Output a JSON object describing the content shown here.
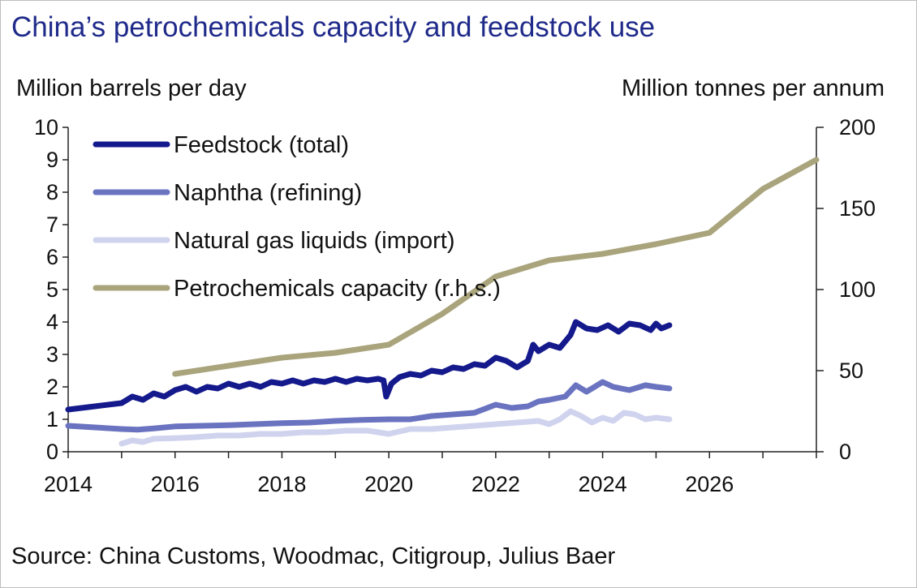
{
  "title": "China’s petrochemicals capacity and feedstock use",
  "source": "Source: China Customs, Woodmac, Citigroup, Julius Baer",
  "chart_data": {
    "type": "line",
    "title": "China’s petrochemicals capacity and feedstock use",
    "ylabel": "Million barrels per day",
    "y2label": "Million tonnes per annum",
    "xlim": [
      2014,
      2028
    ],
    "ylim": [
      0,
      10
    ],
    "y2lim": [
      0,
      200
    ],
    "x_ticks": [
      2014,
      2016,
      2018,
      2020,
      2022,
      2024,
      2026
    ],
    "y_ticks": [
      0,
      1,
      2,
      3,
      4,
      5,
      6,
      7,
      8,
      9,
      10
    ],
    "y2_ticks": [
      0,
      50,
      100,
      150,
      200
    ],
    "legend_position": "top-left",
    "grid": false,
    "series": [
      {
        "name": "Feedstock (total)",
        "axis": "left",
        "color": "#14198c",
        "width": 7,
        "x": [
          2014.0,
          2014.5,
          2015.0,
          2015.2,
          2015.4,
          2015.6,
          2015.8,
          2016.0,
          2016.2,
          2016.4,
          2016.6,
          2016.8,
          2017.0,
          2017.2,
          2017.4,
          2017.6,
          2017.8,
          2018.0,
          2018.2,
          2018.4,
          2018.6,
          2018.8,
          2019.0,
          2019.2,
          2019.4,
          2019.6,
          2019.8,
          2019.9,
          2019.95,
          2020.05,
          2020.2,
          2020.4,
          2020.6,
          2020.8,
          2021.0,
          2021.2,
          2021.4,
          2021.6,
          2021.8,
          2022.0,
          2022.2,
          2022.4,
          2022.6,
          2022.7,
          2022.8,
          2023.0,
          2023.2,
          2023.4,
          2023.5,
          2023.7,
          2023.9,
          2024.1,
          2024.3,
          2024.5,
          2024.7,
          2024.9,
          2025.0,
          2025.1,
          2025.25
        ],
        "values": [
          1.3,
          1.4,
          1.5,
          1.7,
          1.6,
          1.8,
          1.7,
          1.9,
          2.0,
          1.85,
          2.0,
          1.95,
          2.1,
          2.0,
          2.1,
          2.0,
          2.15,
          2.1,
          2.2,
          2.1,
          2.2,
          2.15,
          2.25,
          2.15,
          2.25,
          2.2,
          2.25,
          2.2,
          1.7,
          2.1,
          2.3,
          2.4,
          2.35,
          2.5,
          2.45,
          2.6,
          2.55,
          2.7,
          2.65,
          2.9,
          2.8,
          2.6,
          2.8,
          3.3,
          3.1,
          3.3,
          3.2,
          3.6,
          4.0,
          3.8,
          3.75,
          3.9,
          3.7,
          3.95,
          3.9,
          3.75,
          3.95,
          3.8,
          3.9
        ]
      },
      {
        "name": "Naphtha (refining)",
        "axis": "left",
        "color": "#6a73c0",
        "width": 7,
        "x": [
          2014.0,
          2014.5,
          2015.0,
          2015.3,
          2015.6,
          2016.0,
          2016.5,
          2017.0,
          2017.5,
          2018.0,
          2018.5,
          2019.0,
          2019.5,
          2020.0,
          2020.4,
          2020.8,
          2021.2,
          2021.6,
          2022.0,
          2022.3,
          2022.6,
          2022.8,
          2023.0,
          2023.3,
          2023.5,
          2023.7,
          2024.0,
          2024.2,
          2024.5,
          2024.8,
          2025.0,
          2025.25
        ],
        "values": [
          0.8,
          0.75,
          0.7,
          0.68,
          0.72,
          0.78,
          0.8,
          0.82,
          0.85,
          0.88,
          0.9,
          0.95,
          0.98,
          1.0,
          1.0,
          1.1,
          1.15,
          1.2,
          1.45,
          1.35,
          1.4,
          1.55,
          1.6,
          1.7,
          2.05,
          1.85,
          2.15,
          2.0,
          1.9,
          2.05,
          2.0,
          1.95
        ]
      },
      {
        "name": "Natural gas liquids (import)",
        "axis": "left",
        "color": "#d0d3ee",
        "width": 7,
        "x": [
          2015.0,
          2015.2,
          2015.4,
          2015.6,
          2016.0,
          2016.4,
          2016.8,
          2017.2,
          2017.6,
          2018.0,
          2018.4,
          2018.8,
          2019.2,
          2019.6,
          2020.0,
          2020.4,
          2020.8,
          2021.2,
          2021.6,
          2022.0,
          2022.4,
          2022.8,
          2023.0,
          2023.2,
          2023.4,
          2023.6,
          2023.8,
          2024.0,
          2024.2,
          2024.4,
          2024.6,
          2024.8,
          2025.0,
          2025.25
        ],
        "values": [
          0.25,
          0.35,
          0.3,
          0.4,
          0.42,
          0.45,
          0.5,
          0.5,
          0.55,
          0.55,
          0.6,
          0.6,
          0.65,
          0.65,
          0.55,
          0.7,
          0.7,
          0.75,
          0.8,
          0.85,
          0.9,
          0.95,
          0.85,
          1.0,
          1.25,
          1.1,
          0.9,
          1.05,
          0.95,
          1.2,
          1.15,
          1.0,
          1.05,
          1.0
        ]
      },
      {
        "name": "Petrochemicals capacity (r.h.s.)",
        "axis": "right",
        "color": "#a9a47c",
        "width": 7,
        "x": [
          2016,
          2017,
          2018,
          2019,
          2020,
          2021,
          2022,
          2023,
          2024,
          2025,
          2026,
          2027,
          2028
        ],
        "values": [
          48,
          53,
          58,
          61,
          66,
          85,
          108,
          118,
          122,
          128,
          135,
          162,
          180
        ]
      }
    ]
  }
}
